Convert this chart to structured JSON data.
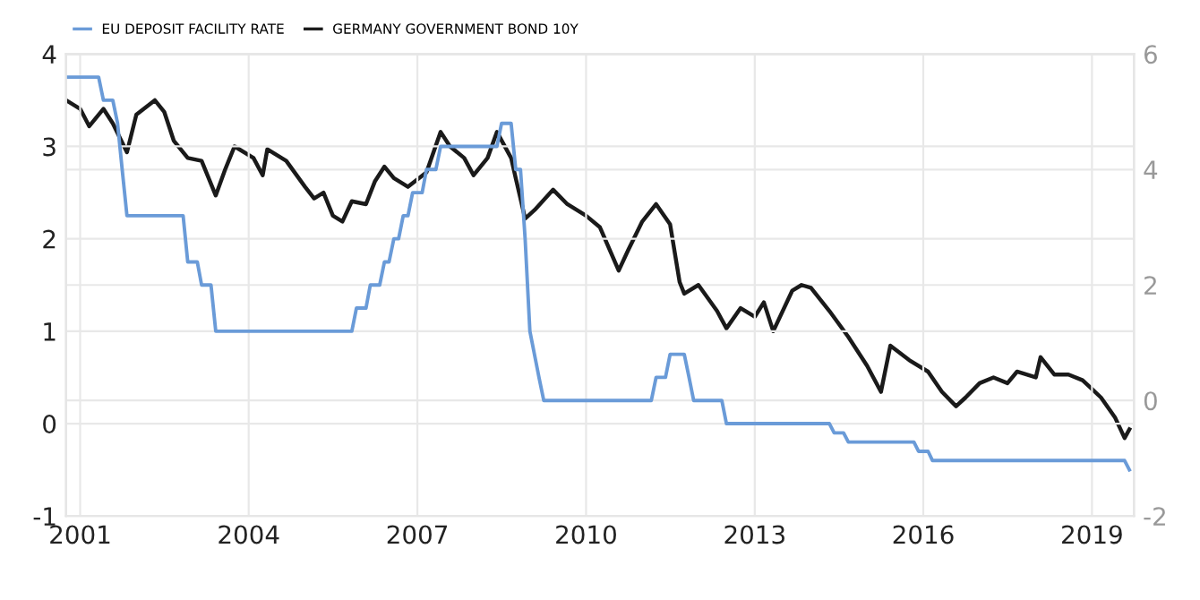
{
  "chart_data": {
    "type": "line",
    "legend": "top left",
    "grid": true,
    "line_style": "solid",
    "marker": "none",
    "xlim": [
      "2000-10",
      "2019-10"
    ],
    "xticks": [
      "2001",
      "2004",
      "2007",
      "2010",
      "2013",
      "2016",
      "2019"
    ],
    "ylim": [
      -1,
      4
    ],
    "yticks": [
      -1,
      0,
      1,
      2,
      3,
      4
    ],
    "y2lim": [
      -2,
      6
    ],
    "y2ticks": [
      -2,
      0,
      2,
      4,
      6
    ],
    "series": [
      {
        "name": "EU DEPOSIT FACILITY RATE",
        "color": "#6a9bd8",
        "x": [
          "2000-10",
          "2001-05",
          "2001-06",
          "2001-08",
          "2001-09",
          "2001-10",
          "2001-11",
          "2002-11",
          "2002-12",
          "2003-02",
          "2003-03",
          "2003-05",
          "2003-06",
          "2005-11",
          "2005-12",
          "2006-02",
          "2006-03",
          "2006-05",
          "2006-06",
          "2006-07",
          "2006-08",
          "2006-09",
          "2006-10",
          "2006-11",
          "2006-12",
          "2007-02",
          "2007-03",
          "2007-05",
          "2007-06",
          "2008-06",
          "2008-07",
          "2008-09",
          "2008-10",
          "2008-11",
          "2008-12",
          "2009-01",
          "2009-03",
          "2009-04",
          "2011-03",
          "2011-04",
          "2011-06",
          "2011-07",
          "2011-10",
          "2011-11",
          "2011-12",
          "2012-06",
          "2012-07",
          "2014-05",
          "2014-06",
          "2014-08",
          "2014-09",
          "2015-11",
          "2015-12",
          "2016-02",
          "2016-03",
          "2019-08",
          "2019-09"
        ],
        "values": [
          3.75,
          3.75,
          3.5,
          3.5,
          3.25,
          2.75,
          2.25,
          2.25,
          1.75,
          1.75,
          1.5,
          1.5,
          1.0,
          1.0,
          1.25,
          1.25,
          1.5,
          1.5,
          1.75,
          1.75,
          2.0,
          2.0,
          2.25,
          2.25,
          2.5,
          2.5,
          2.75,
          2.75,
          3.0,
          3.0,
          3.25,
          3.25,
          2.75,
          2.75,
          2.0,
          1.0,
          0.5,
          0.25,
          0.25,
          0.5,
          0.5,
          0.75,
          0.75,
          0.5,
          0.25,
          0.25,
          0.0,
          0.0,
          -0.1,
          -0.1,
          -0.2,
          -0.2,
          -0.3,
          -0.3,
          -0.4,
          -0.4,
          -0.5
        ]
      },
      {
        "name": "GERMANY GOVERNMENT BOND 10Y",
        "color": "#1a1a1a",
        "axis": "y2",
        "x": [
          "2000-10",
          "2001-01",
          "2001-03",
          "2001-06",
          "2001-08",
          "2001-11",
          "2002-01",
          "2002-05",
          "2002-07",
          "2002-09",
          "2002-12",
          "2003-03",
          "2003-06",
          "2003-08",
          "2003-10",
          "2004-02",
          "2004-04",
          "2004-05",
          "2004-09",
          "2005-01",
          "2005-03",
          "2005-05",
          "2005-07",
          "2005-09",
          "2005-11",
          "2006-02",
          "2006-04",
          "2006-06",
          "2006-08",
          "2006-11",
          "2007-03",
          "2007-06",
          "2007-08",
          "2007-11",
          "2008-01",
          "2008-04",
          "2008-06",
          "2008-09",
          "2008-10",
          "2008-12",
          "2009-02",
          "2009-06",
          "2009-09",
          "2010-01",
          "2010-04",
          "2010-08",
          "2010-10",
          "2011-01",
          "2011-04",
          "2011-07",
          "2011-09",
          "2011-10",
          "2012-01",
          "2012-05",
          "2012-07",
          "2012-10",
          "2013-01",
          "2013-03",
          "2013-05",
          "2013-09",
          "2013-11",
          "2014-01",
          "2014-05",
          "2014-09",
          "2015-01",
          "2015-04",
          "2015-06",
          "2015-10",
          "2016-02",
          "2016-05",
          "2016-08",
          "2016-10",
          "2017-01",
          "2017-04",
          "2017-07",
          "2017-09",
          "2018-01",
          "2018-02",
          "2018-05",
          "2018-08",
          "2018-11",
          "2019-01",
          "2019-03",
          "2019-06",
          "2019-08",
          "2019-09"
        ],
        "values": [
          5.2,
          5.05,
          4.75,
          5.05,
          4.8,
          4.3,
          4.95,
          5.2,
          5.0,
          4.5,
          4.2,
          4.15,
          3.55,
          4.0,
          4.4,
          4.2,
          3.9,
          4.35,
          4.15,
          3.7,
          3.5,
          3.6,
          3.2,
          3.1,
          3.45,
          3.4,
          3.8,
          4.05,
          3.85,
          3.7,
          3.95,
          4.65,
          4.4,
          4.2,
          3.9,
          4.2,
          4.65,
          4.2,
          3.85,
          3.15,
          3.3,
          3.65,
          3.4,
          3.2,
          3.0,
          2.25,
          2.6,
          3.1,
          3.4,
          3.05,
          2.05,
          1.85,
          2.0,
          1.55,
          1.25,
          1.6,
          1.45,
          1.7,
          1.2,
          1.9,
          2.0,
          1.95,
          1.55,
          1.1,
          0.6,
          0.15,
          0.95,
          0.7,
          0.5,
          0.15,
          -0.1,
          0.05,
          0.3,
          0.4,
          0.3,
          0.5,
          0.4,
          0.75,
          0.45,
          0.45,
          0.35,
          0.2,
          0.05,
          -0.3,
          -0.65,
          -0.5
        ]
      }
    ]
  }
}
